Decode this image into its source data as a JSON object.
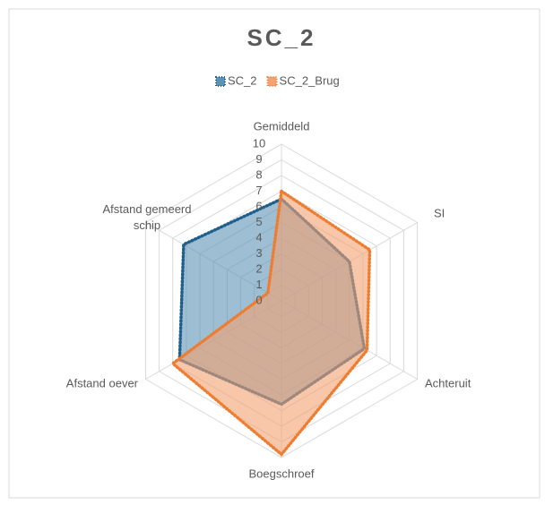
{
  "chart_data": {
    "type": "radar",
    "title": "SC_2",
    "categories": [
      "Gemiddeld",
      "SI",
      "Achteruit",
      "Boegschroef",
      "Afstand oever",
      "Afstand gemeerd schip"
    ],
    "series": [
      {
        "name": "SC_2",
        "color": "#1f5f8b",
        "fill": "#5b93b5",
        "values": [
          6.5,
          5,
          6.1,
          6.6,
          7.5,
          7.2
        ]
      },
      {
        "name": "SC_2_Brug",
        "color": "#ed7d31",
        "fill": "#f4a272",
        "values": [
          7,
          6.5,
          6.3,
          9.8,
          8,
          1
        ]
      }
    ],
    "ylim": [
      0,
      10
    ],
    "yticks": [
      0,
      1,
      2,
      3,
      4,
      5,
      6,
      7,
      8,
      9,
      10
    ],
    "grid": true
  }
}
